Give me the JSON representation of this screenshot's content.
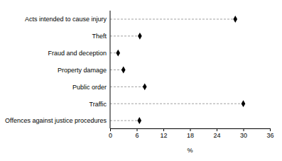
{
  "chart_data": {
    "type": "dot",
    "orientation": "horizontal",
    "categories": [
      "Acts intended to cause injury",
      "Theft",
      "Fraud and deception",
      "Property damage",
      "Public order",
      "Traffic",
      "Offences against justice procedures"
    ],
    "values": [
      28.2,
      6.7,
      1.8,
      3.0,
      7.8,
      30.0,
      6.6
    ],
    "color": "#000000",
    "marker": "diamond",
    "line_style": "dashed",
    "x_label": "%",
    "xlim": [
      0,
      36
    ],
    "xticks": [
      0,
      6,
      12,
      18,
      24,
      30,
      36
    ]
  }
}
